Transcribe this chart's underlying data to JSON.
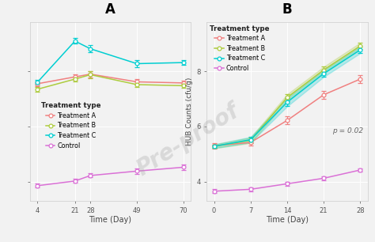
{
  "panel_A": {
    "x": [
      4,
      21,
      28,
      49,
      70
    ],
    "Treatment_A": {
      "y": [
        7.55,
        7.8,
        7.9,
        7.62,
        7.58
      ],
      "yerr": [
        0.08,
        0.1,
        0.12,
        0.1,
        0.08
      ]
    },
    "Treatment_B": {
      "y": [
        7.35,
        7.72,
        7.88,
        7.52,
        7.48
      ],
      "yerr": [
        0.08,
        0.1,
        0.12,
        0.1,
        0.08
      ]
    },
    "Treatment_C": {
      "y": [
        7.6,
        9.1,
        8.82,
        8.28,
        8.32
      ],
      "yerr": [
        0.08,
        0.1,
        0.12,
        0.14,
        0.08
      ]
    },
    "Control": {
      "y": [
        3.85,
        4.02,
        4.22,
        4.38,
        4.52
      ],
      "yerr": [
        0.07,
        0.07,
        0.07,
        0.1,
        0.1
      ]
    },
    "xlabel": "Time (Day)",
    "xticks": [
      4,
      21,
      28,
      49,
      70
    ],
    "ylim": [
      3.3,
      9.8
    ],
    "yticks": [
      4,
      6,
      8
    ],
    "label": "A"
  },
  "panel_B": {
    "x": [
      0,
      7,
      14,
      21,
      28
    ],
    "Treatment_A": {
      "y": [
        5.3,
        5.42,
        6.22,
        7.15,
        7.72
      ],
      "yerr": [
        0.1,
        0.1,
        0.15,
        0.15,
        0.15
      ]
    },
    "Treatment_B": {
      "y": [
        5.28,
        5.5,
        7.05,
        8.05,
        8.92
      ],
      "yerr": [
        0.07,
        0.1,
        0.12,
        0.12,
        0.12
      ]
    },
    "Treatment_C": {
      "y": [
        5.28,
        5.52,
        6.88,
        7.92,
        8.78
      ],
      "yerr": [
        0.07,
        0.1,
        0.15,
        0.12,
        0.12
      ]
    },
    "Control": {
      "y": [
        3.65,
        3.72,
        3.92,
        4.12,
        4.42
      ],
      "yerr": [
        0.07,
        0.07,
        0.07,
        0.07,
        0.07
      ]
    },
    "xlabel": "Time (Day)",
    "xticks": [
      0,
      7,
      14,
      21,
      28
    ],
    "ylim": [
      3.3,
      9.8
    ],
    "yticks": [
      4,
      6,
      8
    ],
    "label": "B",
    "pvalue": "p = 0.02"
  },
  "ylabel": "HUB Counts (cfu/g)",
  "colors": {
    "Treatment_A": "#F08080",
    "Treatment_B": "#ADCC3E",
    "Treatment_C": "#00CED1",
    "Control": "#DA70D6"
  },
  "ribbon_colors": {
    "Treatment_B": "#ADCC3E44",
    "Treatment_C": "#00CED144"
  },
  "legend_title": "Treatment type",
  "legend_labels": [
    "Treatment A",
    "Treatment B",
    "Treatment C",
    "Control"
  ],
  "bg_color": "#F2F2F2",
  "grid_color": "#FFFFFF",
  "marker": "o",
  "marker_size": 3.5,
  "linewidth": 1.1
}
